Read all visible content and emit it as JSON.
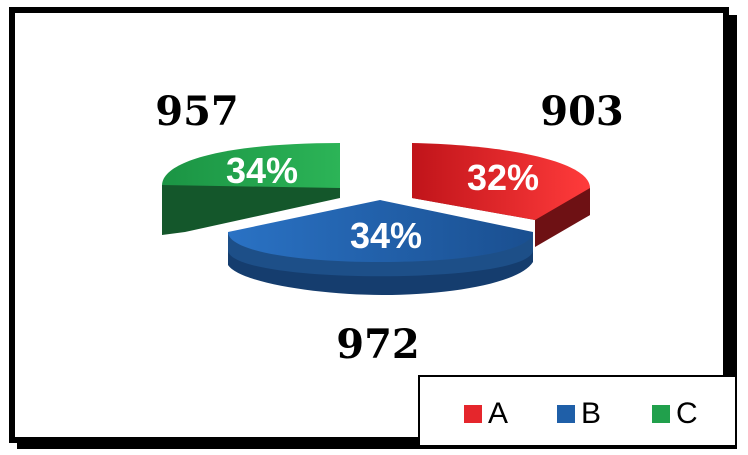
{
  "chart_data": {
    "type": "pie",
    "style": "3d-exploded",
    "categories": [
      "A",
      "B",
      "C"
    ],
    "values": [
      903,
      972,
      957
    ],
    "percent_labels": [
      "32%",
      "34%",
      "34%"
    ],
    "colors": [
      "#e5262c",
      "#1f5fa8",
      "#21a04c"
    ],
    "legend_position": "bottom-right"
  },
  "legend": [
    {
      "label": "A",
      "color": "#e5262c"
    },
    {
      "label": "B",
      "color": "#1f5fa8"
    },
    {
      "label": "C",
      "color": "#21a04c"
    }
  ]
}
